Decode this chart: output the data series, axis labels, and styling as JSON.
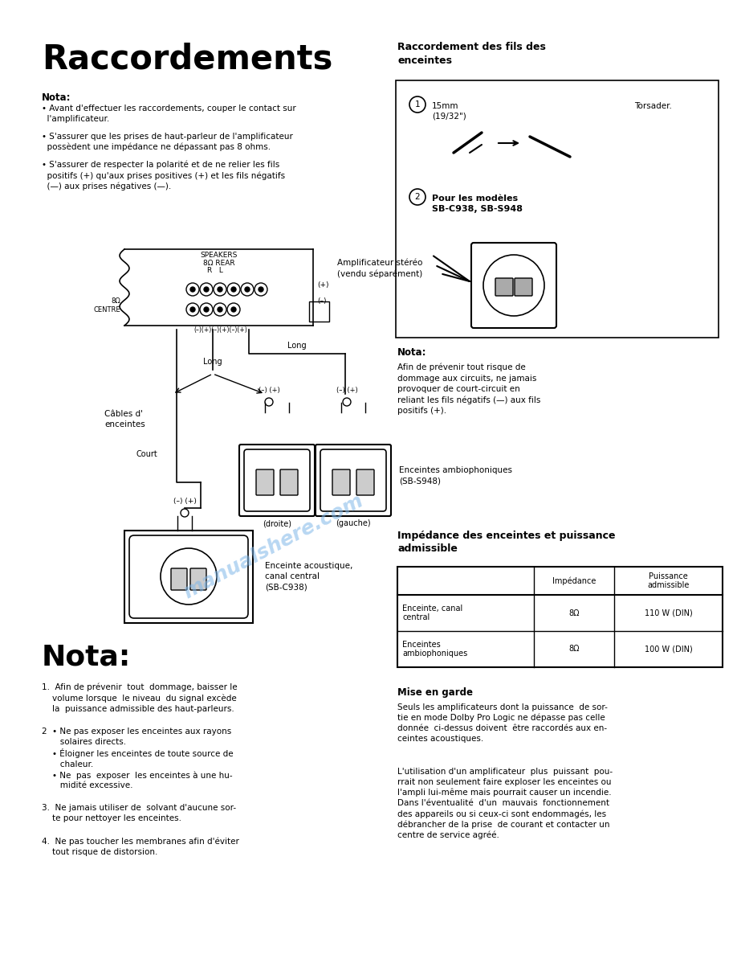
{
  "bg_color": "#ffffff",
  "page_width": 9.18,
  "page_height": 11.88,
  "title": "Raccordements",
  "watermark_text": "manualshere.com",
  "watermark_color": "#7EB6E8",
  "table_headers": [
    "",
    "Impédance",
    "Puissance\nadmissible"
  ],
  "table_rows": [
    [
      "Enceinte, canal\ncentral",
      "8Ω",
      "110 W (DIN)"
    ],
    [
      "Enceintes\nambiophoniques",
      "8Ω",
      "100 W (DIN)"
    ]
  ]
}
